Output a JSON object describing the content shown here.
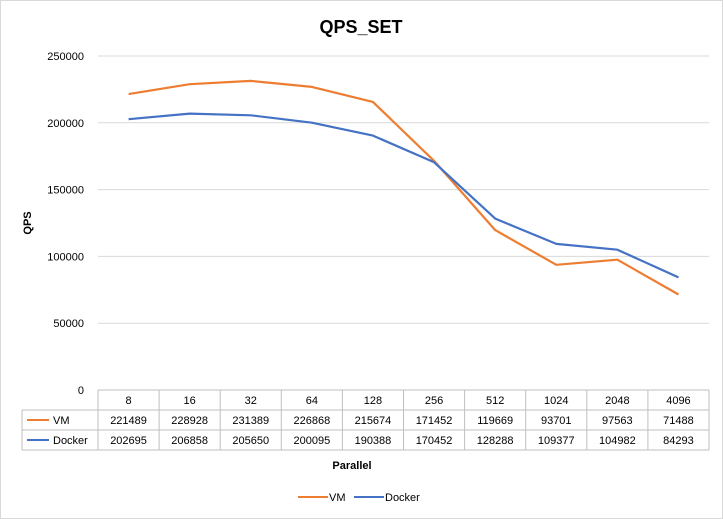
{
  "chart_data": {
    "type": "line",
    "title": "QPS_SET",
    "xlabel": "Parallel",
    "ylabel": "QPS",
    "categories": [
      "8",
      "16",
      "32",
      "64",
      "128",
      "256",
      "512",
      "1024",
      "2048",
      "4096"
    ],
    "ylim": [
      0,
      250000
    ],
    "yticks": [
      "0",
      "50000",
      "100000",
      "150000",
      "200000",
      "250000"
    ],
    "grid": true,
    "legend": "bottom",
    "data_table": true,
    "series": [
      {
        "name": "VM",
        "color": "#ED7D31",
        "values": [
          221489,
          228928,
          231389,
          226868,
          215674,
          171452,
          119669,
          93701,
          97563,
          71488
        ]
      },
      {
        "name": "Docker",
        "color": "#4472C4",
        "values": [
          202695,
          206858,
          205650,
          200095,
          190388,
          170452,
          128288,
          109377,
          104982,
          84293
        ]
      }
    ]
  }
}
